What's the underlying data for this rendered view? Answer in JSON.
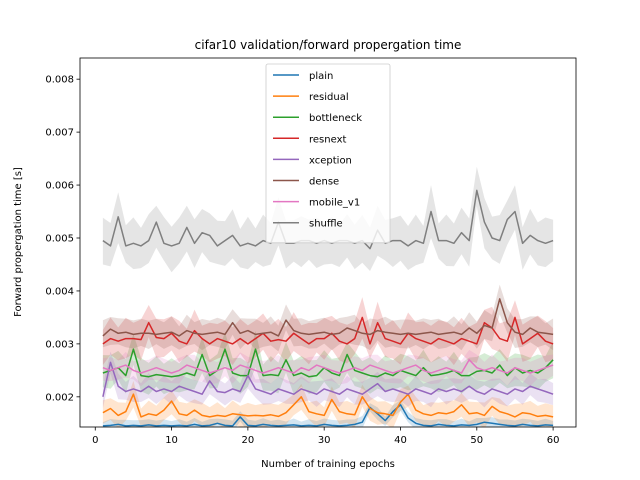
{
  "chart_data": {
    "type": "line",
    "title": "cifar10 validation/forward propergation time",
    "xlabel": "Number of training epochs",
    "ylabel": "Forward propergation time [s]",
    "xlim": [
      -2,
      63
    ],
    "ylim": [
      0.00143,
      0.0084
    ],
    "xticks": [
      0,
      10,
      20,
      30,
      40,
      50,
      60
    ],
    "yticks": [
      0.002,
      0.003,
      0.004,
      0.005,
      0.006,
      0.007,
      0.008
    ],
    "ytick_labels": [
      "0.002",
      "0.003",
      "0.004",
      "0.005",
      "0.006",
      "0.007",
      "0.008"
    ],
    "legend_position": "upper center",
    "grid": false,
    "x": [
      1,
      2,
      3,
      4,
      5,
      6,
      7,
      8,
      9,
      10,
      11,
      12,
      13,
      14,
      15,
      16,
      17,
      18,
      19,
      20,
      21,
      22,
      23,
      24,
      25,
      26,
      27,
      28,
      29,
      30,
      31,
      32,
      33,
      34,
      35,
      36,
      37,
      38,
      39,
      40,
      41,
      42,
      43,
      44,
      45,
      46,
      47,
      48,
      49,
      50,
      51,
      52,
      53,
      54,
      55,
      56,
      57,
      58,
      59,
      60
    ],
    "series": [
      {
        "name": "plain",
        "color": "#1f77b4",
        "band": 0.00012,
        "values": [
          0.00145,
          0.00146,
          0.00148,
          0.00145,
          0.00146,
          0.00145,
          0.00147,
          0.00145,
          0.00146,
          0.00145,
          0.00146,
          0.00145,
          0.00148,
          0.00145,
          0.00146,
          0.0015,
          0.00146,
          0.00145,
          0.00162,
          0.00146,
          0.00145,
          0.00148,
          0.00146,
          0.00145,
          0.00146,
          0.00147,
          0.00145,
          0.00146,
          0.00145,
          0.00148,
          0.00146,
          0.00145,
          0.00146,
          0.00148,
          0.00152,
          0.0018,
          0.00168,
          0.00155,
          0.00172,
          0.00185,
          0.0016,
          0.0015,
          0.00146,
          0.00145,
          0.00148,
          0.00146,
          0.00145,
          0.00147,
          0.00146,
          0.00148,
          0.00152,
          0.0015,
          0.00148,
          0.00146,
          0.00145,
          0.00148,
          0.00146,
          0.00145,
          0.00147,
          0.00146
        ]
      },
      {
        "name": "residual",
        "color": "#ff7f0e",
        "band": 0.00025,
        "values": [
          0.0017,
          0.00178,
          0.00165,
          0.00172,
          0.00205,
          0.00162,
          0.00168,
          0.00165,
          0.00175,
          0.00192,
          0.00168,
          0.00165,
          0.00175,
          0.00165,
          0.00162,
          0.00165,
          0.00163,
          0.00168,
          0.00166,
          0.00164,
          0.00165,
          0.00164,
          0.00166,
          0.00163,
          0.0017,
          0.00185,
          0.002,
          0.00172,
          0.00168,
          0.00165,
          0.00195,
          0.00172,
          0.00168,
          0.00166,
          0.002,
          0.00178,
          0.0017,
          0.00168,
          0.00165,
          0.0019,
          0.00205,
          0.00175,
          0.00168,
          0.00165,
          0.0017,
          0.00168,
          0.00172,
          0.00185,
          0.00168,
          0.0017,
          0.00165,
          0.00182,
          0.00172,
          0.00168,
          0.00162,
          0.0017,
          0.00168,
          0.00163,
          0.00165,
          0.00162
        ]
      },
      {
        "name": "bottleneck",
        "color": "#2ca02c",
        "band": 0.00035,
        "values": [
          0.00245,
          0.0025,
          0.00255,
          0.0024,
          0.0029,
          0.0024,
          0.00238,
          0.00242,
          0.0024,
          0.00238,
          0.0024,
          0.00245,
          0.0024,
          0.0028,
          0.0024,
          0.0025,
          0.0029,
          0.00245,
          0.0024,
          0.0024,
          0.0029,
          0.0024,
          0.00242,
          0.0024,
          0.0027,
          0.0024,
          0.00245,
          0.00238,
          0.0024,
          0.00255,
          0.00245,
          0.0024,
          0.0028,
          0.0025,
          0.00245,
          0.0024,
          0.00238,
          0.00245,
          0.0024,
          0.0025,
          0.00245,
          0.0024,
          0.00255,
          0.0024,
          0.00242,
          0.00245,
          0.0025,
          0.0024,
          0.0024,
          0.00248,
          0.0025,
          0.00245,
          0.0026,
          0.0024,
          0.00255,
          0.00245,
          0.0025,
          0.00245,
          0.00255,
          0.0027
        ]
      },
      {
        "name": "resnext",
        "color": "#d62728",
        "band": 0.0004,
        "values": [
          0.003,
          0.0031,
          0.00305,
          0.0031,
          0.0031,
          0.00308,
          0.0034,
          0.00312,
          0.0031,
          0.0032,
          0.00305,
          0.003,
          0.00325,
          0.0031,
          0.003,
          0.0031,
          0.00305,
          0.003,
          0.0031,
          0.003,
          0.0031,
          0.0032,
          0.00305,
          0.00308,
          0.00305,
          0.0032,
          0.0031,
          0.003,
          0.0031,
          0.0031,
          0.0032,
          0.00305,
          0.003,
          0.0031,
          0.0035,
          0.003,
          0.0034,
          0.0031,
          0.00305,
          0.003,
          0.0032,
          0.0031,
          0.00305,
          0.003,
          0.0031,
          0.00305,
          0.003,
          0.0031,
          0.00305,
          0.003,
          0.0034,
          0.0033,
          0.0031,
          0.00305,
          0.0035,
          0.003,
          0.0031,
          0.0032,
          0.00305,
          0.003
        ]
      },
      {
        "name": "xception",
        "color": "#9467bd",
        "band": 0.00025,
        "values": [
          0.002,
          0.00265,
          0.0022,
          0.0021,
          0.00215,
          0.0021,
          0.0022,
          0.0021,
          0.00215,
          0.0021,
          0.0022,
          0.00215,
          0.0021,
          0.00205,
          0.0023,
          0.0021,
          0.00208,
          0.00215,
          0.0021,
          0.0024,
          0.00215,
          0.0021,
          0.00205,
          0.00215,
          0.0021,
          0.00205,
          0.00215,
          0.0021,
          0.00205,
          0.00215,
          0.0021,
          0.00205,
          0.00215,
          0.0021,
          0.00205,
          0.00215,
          0.00225,
          0.0021,
          0.00215,
          0.0021,
          0.00205,
          0.00215,
          0.0021,
          0.00205,
          0.00215,
          0.0021,
          0.00215,
          0.0021,
          0.0022,
          0.0021,
          0.00205,
          0.00215,
          0.0021,
          0.00205,
          0.00215,
          0.0021,
          0.0022,
          0.00215,
          0.0021,
          0.00205
        ]
      },
      {
        "name": "dense",
        "color": "#8c564b",
        "band": 0.0003,
        "values": [
          0.00315,
          0.00328,
          0.0032,
          0.00322,
          0.00318,
          0.0032,
          0.0032,
          0.00318,
          0.0032,
          0.00322,
          0.00315,
          0.00325,
          0.0032,
          0.00318,
          0.0032,
          0.00322,
          0.00318,
          0.0034,
          0.0032,
          0.00325,
          0.00318,
          0.0032,
          0.00322,
          0.00315,
          0.00345,
          0.00325,
          0.0032,
          0.00318,
          0.0032,
          0.00322,
          0.00318,
          0.0032,
          0.0033,
          0.00325,
          0.0032,
          0.00318,
          0.00325,
          0.00322,
          0.0032,
          0.00318,
          0.0032,
          0.00318,
          0.0032,
          0.00322,
          0.00318,
          0.0032,
          0.00322,
          0.00318,
          0.0033,
          0.0032,
          0.00335,
          0.0033,
          0.00385,
          0.0034,
          0.00322,
          0.00318,
          0.0033,
          0.00322,
          0.0032,
          0.00318
        ]
      },
      {
        "name": "mobile_v1",
        "color": "#e377c2",
        "band": 0.00025,
        "values": [
          0.00255,
          0.0025,
          0.00255,
          0.0026,
          0.0025,
          0.00245,
          0.0025,
          0.00255,
          0.0025,
          0.00245,
          0.0025,
          0.0026,
          0.00255,
          0.0025,
          0.00245,
          0.0025,
          0.00255,
          0.0025,
          0.0026,
          0.00255,
          0.0025,
          0.00245,
          0.0025,
          0.00255,
          0.0025,
          0.00245,
          0.00255,
          0.0025,
          0.0026,
          0.00255,
          0.0025,
          0.00245,
          0.0025,
          0.00255,
          0.0025,
          0.0026,
          0.00255,
          0.0025,
          0.00245,
          0.0025,
          0.00255,
          0.0026,
          0.0025,
          0.00245,
          0.0025,
          0.00255,
          0.0025,
          0.00245,
          0.0027,
          0.00255,
          0.0025,
          0.00255,
          0.0025,
          0.00245,
          0.00255,
          0.0025,
          0.00245,
          0.0025,
          0.00255,
          0.0026
        ]
      },
      {
        "name": "shuffle",
        "color": "#7f7f7f",
        "band": 0.0005,
        "values": [
          0.00495,
          0.00485,
          0.0054,
          0.00485,
          0.0049,
          0.00485,
          0.00495,
          0.0053,
          0.0049,
          0.00485,
          0.0049,
          0.0052,
          0.0049,
          0.0051,
          0.00505,
          0.00485,
          0.00495,
          0.00505,
          0.00485,
          0.0049,
          0.00485,
          0.00495,
          0.0049,
          0.0053,
          0.0049,
          0.0049,
          0.00495,
          0.00495,
          0.0049,
          0.00495,
          0.0049,
          0.00495,
          0.00495,
          0.0049,
          0.00495,
          0.0048,
          0.00515,
          0.0049,
          0.00495,
          0.00495,
          0.00485,
          0.00495,
          0.0049,
          0.0055,
          0.00495,
          0.00495,
          0.0049,
          0.0051,
          0.00495,
          0.0059,
          0.0053,
          0.005,
          0.00495,
          0.00535,
          0.0055,
          0.0049,
          0.00505,
          0.00495,
          0.0049,
          0.00495
        ]
      }
    ]
  }
}
